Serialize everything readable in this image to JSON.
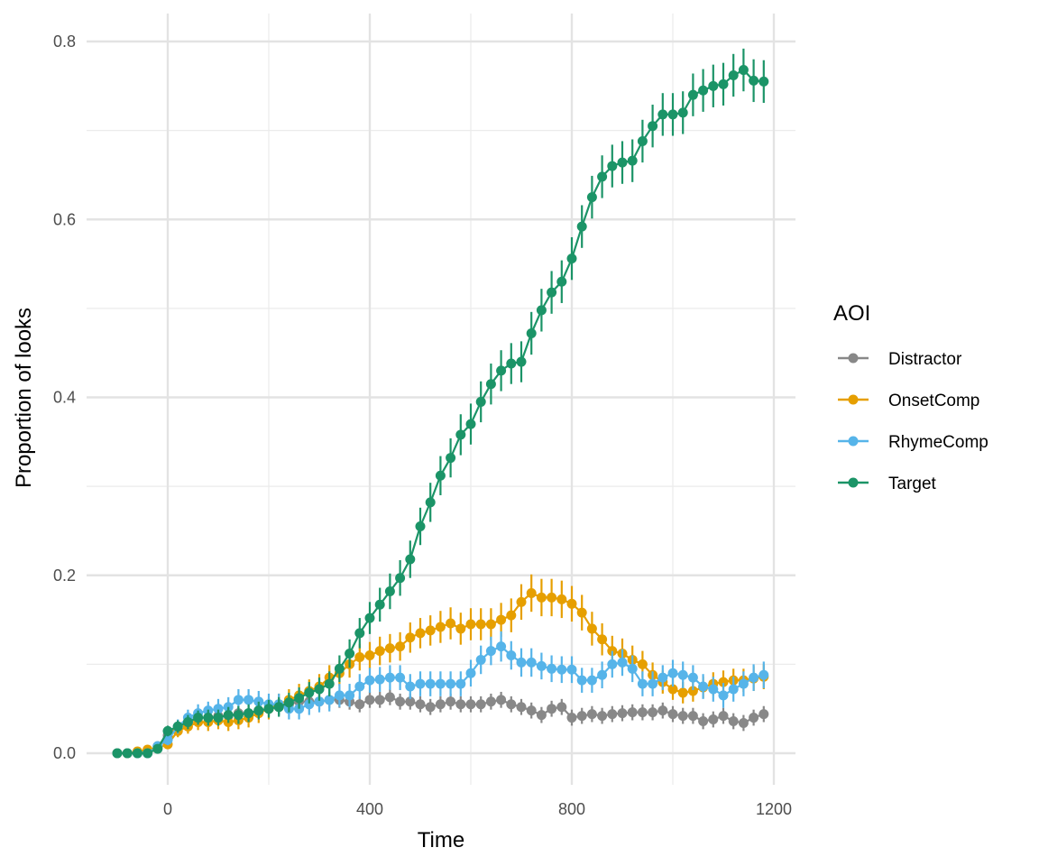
{
  "chart_data": {
    "type": "line",
    "xlabel": "Time",
    "ylabel": "Proportion of looks",
    "xlim": [
      -100,
      1200
    ],
    "ylim": [
      0,
      0.8
    ],
    "x_ticks": [
      0,
      400,
      800,
      1200
    ],
    "y_ticks": [
      0.0,
      0.2,
      0.4,
      0.6,
      0.8
    ],
    "x_tick_labels": [
      "0",
      "400",
      "800",
      "1200"
    ],
    "y_tick_labels": [
      "0.0",
      "0.2",
      "0.4",
      "0.6",
      "0.8"
    ],
    "grid": true,
    "error_bars": true,
    "legend": {
      "title": "AOI",
      "position": "right"
    },
    "x": [
      -100,
      -80,
      -60,
      -40,
      -20,
      0,
      20,
      40,
      60,
      80,
      100,
      120,
      140,
      160,
      180,
      200,
      220,
      240,
      260,
      280,
      300,
      320,
      340,
      360,
      380,
      400,
      420,
      440,
      460,
      480,
      500,
      520,
      540,
      560,
      580,
      600,
      620,
      640,
      660,
      680,
      700,
      720,
      740,
      760,
      780,
      800,
      820,
      840,
      860,
      880,
      900,
      920,
      940,
      960,
      980,
      1000,
      1020,
      1040,
      1060,
      1080,
      1100,
      1120,
      1140,
      1160,
      1180
    ],
    "series": [
      {
        "name": "Distractor",
        "color": "#888888",
        "values": [
          0,
          0,
          0,
          0,
          0.008,
          0.02,
          0.03,
          0.035,
          0.04,
          0.04,
          0.042,
          0.042,
          0.045,
          0.045,
          0.048,
          0.05,
          0.052,
          0.055,
          0.058,
          0.058,
          0.058,
          0.06,
          0.06,
          0.058,
          0.055,
          0.06,
          0.06,
          0.063,
          0.058,
          0.058,
          0.055,
          0.052,
          0.055,
          0.058,
          0.055,
          0.055,
          0.055,
          0.058,
          0.06,
          0.055,
          0.052,
          0.048,
          0.043,
          0.05,
          0.052,
          0.04,
          0.042,
          0.044,
          0.042,
          0.044,
          0.045,
          0.046,
          0.046,
          0.046,
          0.048,
          0.044,
          0.042,
          0.042,
          0.036,
          0.038,
          0.042,
          0.036,
          0.034,
          0.04,
          0.044
        ],
        "errors": [
          0,
          0,
          0,
          0,
          0.004,
          0.005,
          0.006,
          0.007,
          0.008,
          0.008,
          0.008,
          0.008,
          0.008,
          0.008,
          0.008,
          0.008,
          0.009,
          0.009,
          0.009,
          0.009,
          0.009,
          0.009,
          0.009,
          0.009,
          0.009,
          0.009,
          0.009,
          0.009,
          0.009,
          0.009,
          0.009,
          0.009,
          0.009,
          0.009,
          0.009,
          0.009,
          0.009,
          0.009,
          0.009,
          0.009,
          0.009,
          0.009,
          0.009,
          0.009,
          0.009,
          0.009,
          0.009,
          0.009,
          0.009,
          0.009,
          0.009,
          0.009,
          0.009,
          0.009,
          0.009,
          0.009,
          0.009,
          0.009,
          0.009,
          0.009,
          0.009,
          0.009,
          0.009,
          0.009,
          0.009
        ]
      },
      {
        "name": "OnsetComp",
        "color": "#E69F00",
        "values": [
          0,
          0,
          0.002,
          0.004,
          0.006,
          0.01,
          0.025,
          0.03,
          0.035,
          0.035,
          0.037,
          0.035,
          0.037,
          0.04,
          0.045,
          0.05,
          0.055,
          0.06,
          0.065,
          0.07,
          0.075,
          0.085,
          0.09,
          0.1,
          0.108,
          0.11,
          0.115,
          0.118,
          0.12,
          0.13,
          0.135,
          0.138,
          0.142,
          0.146,
          0.14,
          0.145,
          0.145,
          0.145,
          0.15,
          0.155,
          0.17,
          0.18,
          0.175,
          0.175,
          0.173,
          0.168,
          0.158,
          0.14,
          0.128,
          0.115,
          0.112,
          0.105,
          0.1,
          0.088,
          0.08,
          0.072,
          0.068,
          0.07,
          0.074,
          0.078,
          0.08,
          0.082,
          0.082,
          0.084,
          0.086
        ],
        "errors": [
          0,
          0,
          0.002,
          0.003,
          0.004,
          0.005,
          0.007,
          0.008,
          0.009,
          0.01,
          0.01,
          0.01,
          0.01,
          0.011,
          0.011,
          0.012,
          0.012,
          0.012,
          0.013,
          0.013,
          0.014,
          0.014,
          0.014,
          0.015,
          0.015,
          0.015,
          0.016,
          0.016,
          0.016,
          0.017,
          0.017,
          0.017,
          0.018,
          0.018,
          0.018,
          0.018,
          0.018,
          0.018,
          0.019,
          0.019,
          0.02,
          0.021,
          0.021,
          0.021,
          0.021,
          0.02,
          0.02,
          0.019,
          0.018,
          0.017,
          0.017,
          0.016,
          0.015,
          0.014,
          0.013,
          0.012,
          0.012,
          0.012,
          0.012,
          0.013,
          0.013,
          0.013,
          0.013,
          0.014,
          0.014
        ]
      },
      {
        "name": "RhymeComp",
        "color": "#56B4E9",
        "values": [
          0,
          0,
          0,
          0,
          0.008,
          0.015,
          0.03,
          0.04,
          0.045,
          0.048,
          0.05,
          0.052,
          0.06,
          0.06,
          0.058,
          0.055,
          0.055,
          0.05,
          0.05,
          0.055,
          0.058,
          0.06,
          0.065,
          0.065,
          0.075,
          0.082,
          0.083,
          0.085,
          0.085,
          0.075,
          0.078,
          0.078,
          0.078,
          0.078,
          0.078,
          0.09,
          0.105,
          0.115,
          0.12,
          0.11,
          0.102,
          0.102,
          0.098,
          0.095,
          0.094,
          0.094,
          0.082,
          0.082,
          0.088,
          0.1,
          0.102,
          0.095,
          0.078,
          0.078,
          0.085,
          0.09,
          0.088,
          0.085,
          0.075,
          0.072,
          0.065,
          0.072,
          0.078,
          0.085,
          0.088
        ],
        "errors": [
          0,
          0,
          0,
          0,
          0.004,
          0.006,
          0.008,
          0.009,
          0.01,
          0.01,
          0.011,
          0.011,
          0.012,
          0.012,
          0.012,
          0.012,
          0.012,
          0.012,
          0.012,
          0.012,
          0.012,
          0.013,
          0.013,
          0.013,
          0.014,
          0.014,
          0.014,
          0.014,
          0.014,
          0.014,
          0.014,
          0.014,
          0.014,
          0.014,
          0.014,
          0.015,
          0.016,
          0.016,
          0.017,
          0.016,
          0.016,
          0.016,
          0.015,
          0.015,
          0.015,
          0.015,
          0.014,
          0.014,
          0.015,
          0.015,
          0.015,
          0.015,
          0.014,
          0.014,
          0.014,
          0.015,
          0.015,
          0.014,
          0.014,
          0.014,
          0.014,
          0.014,
          0.014,
          0.015,
          0.015
        ]
      },
      {
        "name": "Target",
        "color": "#1B9467",
        "values": [
          0,
          0,
          0,
          0,
          0.005,
          0.025,
          0.03,
          0.035,
          0.04,
          0.04,
          0.04,
          0.043,
          0.043,
          0.045,
          0.048,
          0.05,
          0.052,
          0.057,
          0.062,
          0.068,
          0.072,
          0.078,
          0.095,
          0.112,
          0.135,
          0.152,
          0.167,
          0.182,
          0.197,
          0.218,
          0.255,
          0.282,
          0.312,
          0.332,
          0.358,
          0.37,
          0.395,
          0.415,
          0.43,
          0.438,
          0.44,
          0.472,
          0.498,
          0.518,
          0.53,
          0.556,
          0.592,
          0.625,
          0.648,
          0.66,
          0.664,
          0.666,
          0.688,
          0.705,
          0.718,
          0.718,
          0.72,
          0.74,
          0.745,
          0.75,
          0.752,
          0.762,
          0.768,
          0.756,
          0.755
        ],
        "errors": [
          0,
          0,
          0,
          0,
          0.004,
          0.006,
          0.007,
          0.008,
          0.008,
          0.009,
          0.009,
          0.009,
          0.01,
          0.01,
          0.01,
          0.01,
          0.011,
          0.011,
          0.012,
          0.012,
          0.013,
          0.014,
          0.015,
          0.016,
          0.017,
          0.018,
          0.019,
          0.02,
          0.02,
          0.021,
          0.021,
          0.022,
          0.022,
          0.022,
          0.023,
          0.023,
          0.023,
          0.023,
          0.023,
          0.023,
          0.023,
          0.024,
          0.024,
          0.024,
          0.024,
          0.024,
          0.024,
          0.024,
          0.024,
          0.024,
          0.024,
          0.024,
          0.024,
          0.024,
          0.024,
          0.024,
          0.024,
          0.024,
          0.024,
          0.024,
          0.024,
          0.024,
          0.024,
          0.024,
          0.024
        ]
      }
    ]
  }
}
